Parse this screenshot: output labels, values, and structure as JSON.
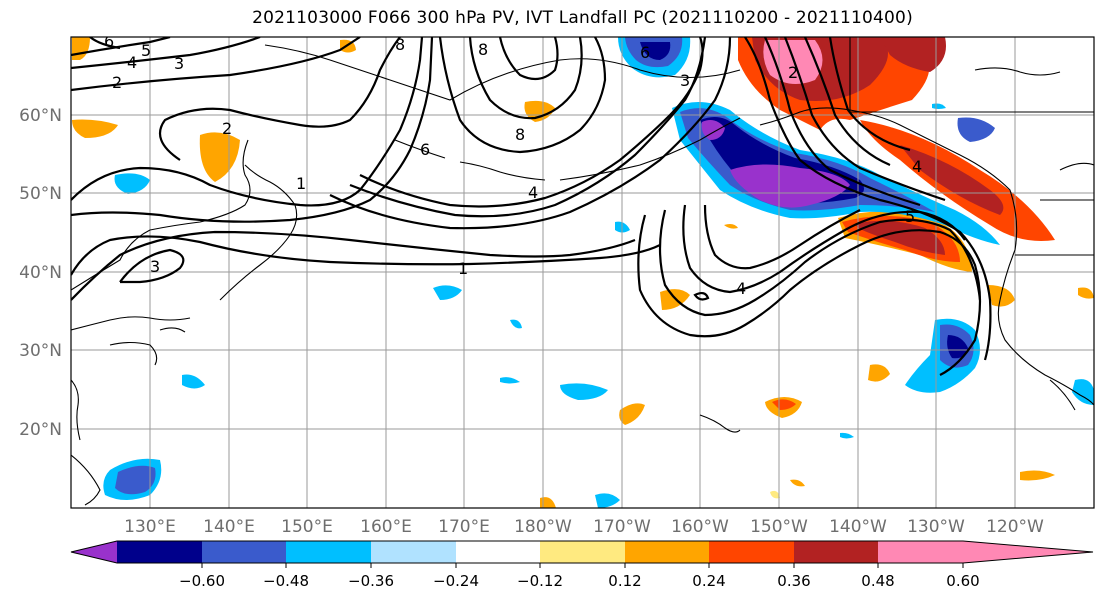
{
  "title": "2021103000 F066 300 hPa PV, IVT Landfall PC (2021110200 - 2021110400)",
  "lat_labels": [
    "60°N",
    "50°N",
    "40°N",
    "30°N",
    "20°N"
  ],
  "lon_labels": [
    "130°E",
    "140°E",
    "150°E",
    "160°E",
    "170°E",
    "180°W",
    "170°W",
    "160°W",
    "150°W",
    "140°W",
    "130°W",
    "120°W"
  ],
  "colorbar": {
    "labels": [
      "−0.60",
      "−0.48",
      "−0.36",
      "−0.24",
      "−0.12",
      "0.12",
      "0.24",
      "0.36",
      "0.48",
      "0.60"
    ],
    "colors": [
      "#9932cc",
      "#00008b",
      "#3a5bcc",
      "#00bfff",
      "#b0e2ff",
      "#ffffff",
      "#ffea80",
      "#ffa500",
      "#ff4500",
      "#b22222",
      "#ff88b4"
    ]
  },
  "pv_contour_labels": [
    "6",
    "5",
    "4",
    "3",
    "2",
    "2",
    "1",
    "6",
    "8",
    "8",
    "4",
    "1",
    "3",
    "4",
    "5",
    "4",
    "2",
    "6",
    "3",
    "8"
  ]
}
